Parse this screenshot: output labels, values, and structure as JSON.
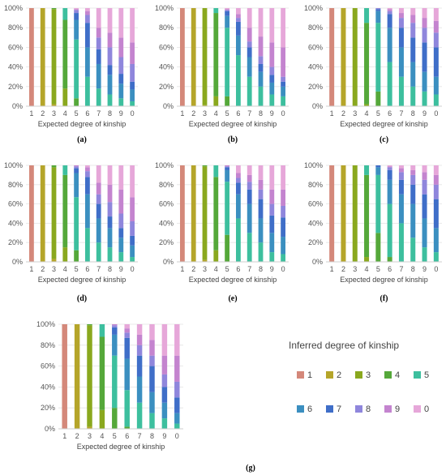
{
  "legend": {
    "title": "Inferred degree of kinship",
    "items": [
      {
        "label": "1",
        "color": "#d4887a"
      },
      {
        "label": "2",
        "color": "#b5a52a"
      },
      {
        "label": "3",
        "color": "#8aa81e"
      },
      {
        "label": "4",
        "color": "#55a83a"
      },
      {
        "label": "5",
        "color": "#3dbf9e"
      },
      {
        "label": "6",
        "color": "#3b8fc0"
      },
      {
        "label": "7",
        "color": "#3f6ec8"
      },
      {
        "label": "8",
        "color": "#8f86dc"
      },
      {
        "label": "9",
        "color": "#c484cf"
      },
      {
        "label": "0",
        "color": "#e6a7d9"
      }
    ]
  },
  "chart_data": [
    {
      "type": "bar",
      "stacked": true,
      "panel_label": "(a)",
      "xlabel": "Expected degree of kinship",
      "ylabel": "",
      "ylim": [
        0,
        100
      ],
      "yticks": [
        "0%",
        "20%",
        "40%",
        "60%",
        "80%",
        "100%"
      ],
      "categories": [
        "1",
        "2",
        "3",
        "4",
        "5",
        "6",
        "7",
        "8",
        "9",
        "0"
      ],
      "series": [
        {
          "values": [
            100,
            0,
            0,
            0,
            0,
            0,
            0,
            0,
            0,
            0
          ]
        },
        {
          "values": [
            0,
            100,
            2,
            0,
            0,
            0,
            0,
            0,
            0,
            0
          ]
        },
        {
          "values": [
            0,
            0,
            97,
            18,
            0,
            0,
            0,
            0,
            0,
            0
          ]
        },
        {
          "values": [
            0,
            0,
            1,
            70,
            8,
            0,
            0,
            0,
            0,
            0
          ]
        },
        {
          "values": [
            0,
            0,
            0,
            12,
            60,
            30,
            18,
            12,
            8,
            5
          ]
        },
        {
          "values": [
            0,
            0,
            0,
            0,
            20,
            30,
            25,
            20,
            15,
            12
          ]
        },
        {
          "values": [
            0,
            0,
            0,
            0,
            7,
            25,
            15,
            10,
            10,
            8
          ]
        },
        {
          "values": [
            0,
            0,
            0,
            0,
            3,
            8,
            12,
            18,
            17,
            18
          ]
        },
        {
          "values": [
            0,
            0,
            0,
            0,
            1,
            4,
            10,
            15,
            20,
            22
          ]
        },
        {
          "values": [
            0,
            0,
            0,
            0,
            1,
            3,
            20,
            25,
            30,
            35
          ]
        }
      ]
    },
    {
      "type": "bar",
      "stacked": true,
      "panel_label": "(b)",
      "xlabel": "Expected degree of kinship",
      "ylabel": "",
      "ylim": [
        0,
        100
      ],
      "yticks": [
        "0%",
        "20%",
        "40%",
        "60%",
        "80%",
        "100%"
      ],
      "categories": [
        "1",
        "2",
        "3",
        "4",
        "5",
        "6",
        "7",
        "8",
        "9",
        "0"
      ],
      "series": [
        {
          "values": [
            100,
            0,
            0,
            0,
            0,
            0,
            0,
            0,
            0,
            0
          ]
        },
        {
          "values": [
            0,
            100,
            1,
            0,
            0,
            0,
            0,
            0,
            0,
            0
          ]
        },
        {
          "values": [
            0,
            0,
            99,
            10,
            0,
            0,
            0,
            0,
            0,
            0
          ]
        },
        {
          "values": [
            0,
            0,
            0,
            85,
            10,
            0,
            0,
            0,
            0,
            0
          ]
        },
        {
          "values": [
            0,
            0,
            0,
            5,
            70,
            52,
            30,
            20,
            12,
            10
          ]
        },
        {
          "values": [
            0,
            0,
            0,
            0,
            12,
            20,
            20,
            15,
            12,
            10
          ]
        },
        {
          "values": [
            0,
            0,
            0,
            0,
            5,
            14,
            10,
            8,
            8,
            5
          ]
        },
        {
          "values": [
            0,
            0,
            0,
            0,
            1,
            4,
            6,
            8,
            8,
            5
          ]
        },
        {
          "values": [
            0,
            0,
            0,
            0,
            1,
            4,
            14,
            20,
            25,
            30
          ]
        },
        {
          "values": [
            0,
            0,
            0,
            0,
            1,
            6,
            20,
            29,
            35,
            40
          ]
        }
      ]
    },
    {
      "type": "bar",
      "stacked": true,
      "panel_label": "(c)",
      "xlabel": "Expected degree of kinship",
      "ylabel": "",
      "ylim": [
        0,
        100
      ],
      "yticks": [
        "0%",
        "20%",
        "40%",
        "60%",
        "80%",
        "100%"
      ],
      "categories": [
        "1",
        "2",
        "3",
        "4",
        "5",
        "6",
        "7",
        "8",
        "9",
        "0"
      ],
      "series": [
        {
          "values": [
            100,
            0,
            0,
            0,
            0,
            0,
            0,
            0,
            0,
            0
          ]
        },
        {
          "values": [
            0,
            100,
            0,
            0,
            0,
            0,
            0,
            0,
            0,
            0
          ]
        },
        {
          "values": [
            0,
            0,
            100,
            2,
            0,
            0,
            0,
            0,
            0,
            0
          ]
        },
        {
          "values": [
            0,
            0,
            0,
            83,
            15,
            0,
            0,
            0,
            0,
            0
          ]
        },
        {
          "values": [
            0,
            0,
            0,
            15,
            70,
            45,
            30,
            20,
            15,
            12
          ]
        },
        {
          "values": [
            0,
            0,
            0,
            0,
            12,
            35,
            30,
            25,
            20,
            18
          ]
        },
        {
          "values": [
            0,
            0,
            0,
            0,
            2,
            14,
            20,
            25,
            30,
            30
          ]
        },
        {
          "values": [
            0,
            0,
            0,
            0,
            1,
            3,
            10,
            15,
            15,
            15
          ]
        },
        {
          "values": [
            0,
            0,
            0,
            0,
            0,
            2,
            5,
            8,
            10,
            12
          ]
        },
        {
          "values": [
            0,
            0,
            0,
            0,
            0,
            1,
            5,
            7,
            10,
            13
          ]
        }
      ]
    },
    {
      "type": "bar",
      "stacked": true,
      "panel_label": "(d)",
      "xlabel": "Expected degree of kinship",
      "ylabel": "",
      "ylim": [
        0,
        100
      ],
      "yticks": [
        "0%",
        "20%",
        "40%",
        "60%",
        "80%",
        "100%"
      ],
      "categories": [
        "1",
        "2",
        "3",
        "4",
        "5",
        "6",
        "7",
        "8",
        "9",
        "0"
      ],
      "series": [
        {
          "values": [
            100,
            0,
            0,
            0,
            0,
            0,
            0,
            0,
            0,
            0
          ]
        },
        {
          "values": [
            0,
            100,
            3,
            0,
            0,
            0,
            0,
            0,
            0,
            0
          ]
        },
        {
          "values": [
            0,
            0,
            95,
            15,
            0,
            0,
            0,
            0,
            0,
            0
          ]
        },
        {
          "values": [
            0,
            0,
            2,
            75,
            12,
            0,
            0,
            0,
            0,
            0
          ]
        },
        {
          "values": [
            0,
            0,
            0,
            10,
            55,
            35,
            20,
            15,
            10,
            5
          ]
        },
        {
          "values": [
            0,
            0,
            0,
            0,
            25,
            35,
            25,
            20,
            15,
            12
          ]
        },
        {
          "values": [
            0,
            0,
            0,
            0,
            5,
            18,
            15,
            12,
            10,
            10
          ]
        },
        {
          "values": [
            0,
            0,
            0,
            0,
            2,
            6,
            10,
            15,
            15,
            15
          ]
        },
        {
          "values": [
            0,
            0,
            0,
            0,
            1,
            4,
            12,
            18,
            25,
            25
          ]
        },
        {
          "values": [
            0,
            0,
            0,
            0,
            0,
            2,
            18,
            20,
            25,
            33
          ]
        }
      ]
    },
    {
      "type": "bar",
      "stacked": true,
      "panel_label": "(e)",
      "xlabel": "Expected degree of kinship",
      "ylabel": "",
      "ylim": [
        0,
        100
      ],
      "yticks": [
        "0%",
        "20%",
        "40%",
        "60%",
        "80%",
        "100%"
      ],
      "categories": [
        "1",
        "2",
        "3",
        "4",
        "5",
        "6",
        "7",
        "8",
        "9",
        "0"
      ],
      "series": [
        {
          "values": [
            100,
            0,
            0,
            0,
            0,
            0,
            0,
            0,
            0,
            0
          ]
        },
        {
          "values": [
            0,
            100,
            2,
            0,
            0,
            0,
            0,
            0,
            0,
            0
          ]
        },
        {
          "values": [
            0,
            0,
            97,
            12,
            0,
            0,
            0,
            0,
            0,
            0
          ]
        },
        {
          "values": [
            0,
            0,
            1,
            76,
            28,
            0,
            0,
            0,
            0,
            0
          ]
        },
        {
          "values": [
            0,
            0,
            0,
            12,
            55,
            45,
            30,
            20,
            10,
            8
          ]
        },
        {
          "values": [
            0,
            0,
            0,
            0,
            12,
            25,
            30,
            25,
            20,
            18
          ]
        },
        {
          "values": [
            0,
            0,
            0,
            0,
            3,
            12,
            15,
            20,
            18,
            20
          ]
        },
        {
          "values": [
            0,
            0,
            0,
            0,
            1,
            5,
            8,
            10,
            12,
            12
          ]
        },
        {
          "values": [
            0,
            0,
            0,
            0,
            1,
            5,
            7,
            10,
            15,
            17
          ]
        },
        {
          "values": [
            0,
            0,
            0,
            0,
            0,
            8,
            10,
            15,
            25,
            25
          ]
        }
      ]
    },
    {
      "type": "bar",
      "stacked": true,
      "panel_label": "(f)",
      "xlabel": "Expected degree of kinship",
      "ylabel": "",
      "ylim": [
        0,
        100
      ],
      "yticks": [
        "0%",
        "20%",
        "40%",
        "60%",
        "80%",
        "100%"
      ],
      "categories": [
        "1",
        "2",
        "3",
        "4",
        "5",
        "6",
        "7",
        "8",
        "9",
        "0"
      ],
      "series": [
        {
          "values": [
            100,
            0,
            0,
            0,
            0,
            0,
            0,
            0,
            0,
            0
          ]
        },
        {
          "values": [
            0,
            100,
            0,
            0,
            0,
            0,
            0,
            0,
            0,
            0
          ]
        },
        {
          "values": [
            0,
            0,
            100,
            5,
            0,
            0,
            0,
            0,
            0,
            0
          ]
        },
        {
          "values": [
            0,
            0,
            0,
            85,
            30,
            5,
            0,
            0,
            0,
            0
          ]
        },
        {
          "values": [
            0,
            0,
            0,
            10,
            60,
            55,
            40,
            25,
            15,
            10
          ]
        },
        {
          "values": [
            0,
            0,
            0,
            0,
            8,
            25,
            30,
            35,
            30,
            25
          ]
        },
        {
          "values": [
            0,
            0,
            0,
            0,
            2,
            10,
            15,
            20,
            25,
            30
          ]
        },
        {
          "values": [
            0,
            0,
            0,
            0,
            0,
            3,
            8,
            10,
            15,
            15
          ]
        },
        {
          "values": [
            0,
            0,
            0,
            0,
            0,
            1,
            4,
            5,
            8,
            10
          ]
        },
        {
          "values": [
            0,
            0,
            0,
            0,
            0,
            1,
            3,
            5,
            7,
            10
          ]
        }
      ]
    },
    {
      "type": "bar",
      "stacked": true,
      "panel_label": "(g)",
      "xlabel": "Expected degree of kinship",
      "ylabel": "",
      "ylim": [
        0,
        100
      ],
      "yticks": [
        "0%",
        "20%",
        "40%",
        "60%",
        "80%",
        "100%"
      ],
      "categories": [
        "1",
        "2",
        "3",
        "4",
        "5",
        "6",
        "7",
        "8",
        "9",
        "0"
      ],
      "series": [
        {
          "values": [
            100,
            0,
            0,
            0,
            0,
            0,
            0,
            0,
            0,
            0
          ]
        },
        {
          "values": [
            0,
            100,
            2,
            0,
            0,
            0,
            0,
            0,
            0,
            0
          ]
        },
        {
          "values": [
            0,
            0,
            97,
            18,
            0,
            0,
            0,
            0,
            0,
            0
          ]
        },
        {
          "values": [
            0,
            0,
            1,
            70,
            20,
            2,
            0,
            0,
            0,
            0
          ]
        },
        {
          "values": [
            0,
            0,
            0,
            12,
            50,
            35,
            25,
            15,
            10,
            5
          ]
        },
        {
          "values": [
            0,
            0,
            0,
            0,
            20,
            30,
            25,
            20,
            15,
            10
          ]
        },
        {
          "values": [
            0,
            0,
            0,
            0,
            7,
            20,
            20,
            25,
            15,
            15
          ]
        },
        {
          "values": [
            0,
            0,
            0,
            0,
            2,
            5,
            10,
            10,
            12,
            15
          ]
        },
        {
          "values": [
            0,
            0,
            0,
            0,
            1,
            4,
            10,
            15,
            18,
            25
          ]
        },
        {
          "values": [
            0,
            0,
            0,
            0,
            0,
            4,
            10,
            15,
            30,
            30
          ]
        }
      ]
    }
  ]
}
